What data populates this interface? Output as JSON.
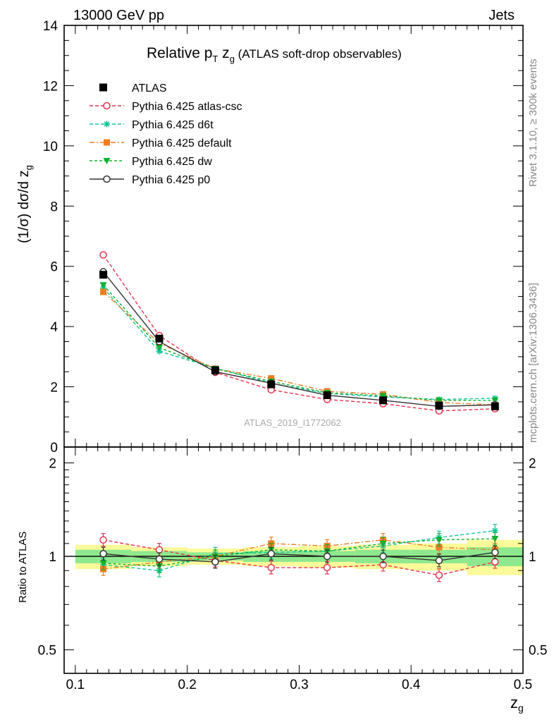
{
  "header": {
    "left": "13000 GeV pp",
    "right": "Jets"
  },
  "side_labels": {
    "rivet": "Rivet 3.1.10, ≥ 300k events",
    "mcplots": "mcplots.cern.ch [arXiv:1306.3436]"
  },
  "watermark": "ATLAS_2019_I1772062",
  "chart_data": {
    "type": "line",
    "title": {
      "main": "Relative p",
      "main_sub": "T",
      "var": " z",
      "var_sub": "g",
      "suffix": " (ATLAS soft-drop observables)"
    },
    "ylabel_top": "(1/σ) dσ/d z",
    "ylabel_top_sub": "g",
    "ylabel_ratio": "Ratio to ATLAS",
    "xlabel": "z",
    "xlabel_sub": "g",
    "xlim": [
      0.09,
      0.5
    ],
    "ylim_top": [
      0,
      14
    ],
    "ylim_ratio": [
      0.42,
      2.25
    ],
    "xticks": [
      "0.1",
      "0.2",
      "0.3",
      "0.4",
      "0.5"
    ],
    "yticks_top": [
      "0",
      "2",
      "4",
      "6",
      "8",
      "10",
      "12",
      "14"
    ],
    "yticks_ratio": [
      "0.5",
      "1",
      "2"
    ],
    "x": [
      0.125,
      0.175,
      0.225,
      0.275,
      0.325,
      0.375,
      0.425,
      0.475
    ],
    "data": {
      "name": "ATLAS",
      "values": [
        5.72,
        3.6,
        2.55,
        2.08,
        1.72,
        1.55,
        1.38,
        1.35
      ],
      "errors": [
        0.1,
        0.06,
        0.05,
        0.04,
        0.04,
        0.04,
        0.04,
        0.04
      ]
    },
    "band_inner": [
      0.05,
      0.04,
      0.03,
      0.04,
      0.04,
      0.05,
      0.05,
      0.07
    ],
    "band_outer": [
      0.09,
      0.07,
      0.06,
      0.07,
      0.08,
      0.09,
      0.1,
      0.13
    ],
    "legend": [
      "ATLAS",
      "Pythia 6.425 atlas-csc",
      "Pythia 6.425 d6t",
      "Pythia 6.425 default",
      "Pythia 6.425 dw",
      "Pythia 6.425 p0"
    ],
    "series": [
      {
        "name": "Pythia 6.425 atlas-csc",
        "color": "#e8304c",
        "dash": "5,3",
        "marker": "circle-open",
        "values": [
          6.38,
          3.7,
          2.48,
          1.9,
          1.58,
          1.44,
          1.2,
          1.27
        ],
        "ratio": [
          1.13,
          1.05,
          0.97,
          0.92,
          0.92,
          0.94,
          0.87,
          0.96
        ]
      },
      {
        "name": "Pythia 6.425 d6t",
        "color": "#11c79a",
        "dash": "5,3",
        "marker": "star",
        "values": [
          5.28,
          3.18,
          2.62,
          2.12,
          1.78,
          1.66,
          1.58,
          1.62
        ],
        "ratio": [
          0.94,
          0.9,
          1.02,
          1.03,
          1.04,
          1.08,
          1.15,
          1.21
        ]
      },
      {
        "name": "Pythia 6.425 default",
        "color": "#ef7d22",
        "dash": "7,3,2,3",
        "marker": "square",
        "values": [
          5.15,
          3.45,
          2.6,
          2.28,
          1.85,
          1.75,
          1.48,
          1.4
        ],
        "ratio": [
          0.91,
          0.96,
          1.0,
          1.1,
          1.08,
          1.13,
          1.07,
          1.05
        ]
      },
      {
        "name": "Pythia 6.425 dw",
        "color": "#10b030",
        "dash": "4,3",
        "marker": "triangle-down",
        "values": [
          5.38,
          3.3,
          2.6,
          2.18,
          1.8,
          1.7,
          1.55,
          1.55
        ],
        "ratio": [
          0.95,
          0.93,
          1.0,
          1.05,
          1.04,
          1.1,
          1.13,
          1.14
        ]
      },
      {
        "name": "Pythia 6.425 p0",
        "color": "#333333",
        "dash": "",
        "marker": "circle-open",
        "values": [
          5.82,
          3.5,
          2.5,
          2.12,
          1.72,
          1.55,
          1.35,
          1.4
        ],
        "ratio": [
          1.02,
          0.98,
          0.96,
          1.02,
          1.0,
          1.0,
          0.97,
          1.03
        ]
      }
    ]
  }
}
